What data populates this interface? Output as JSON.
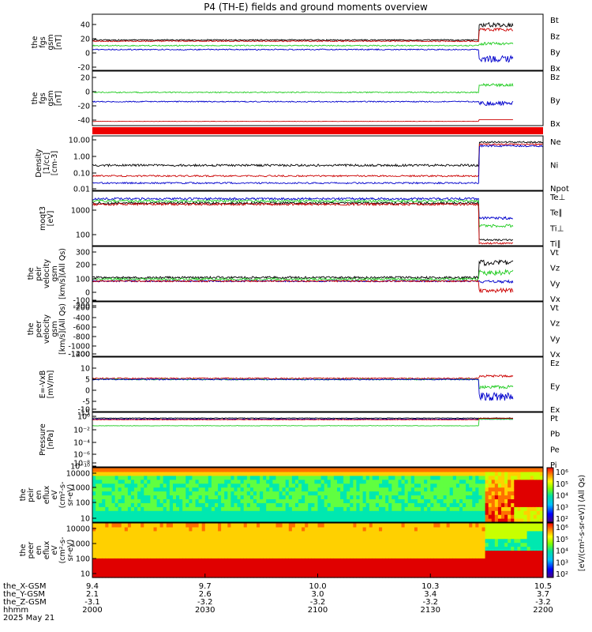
{
  "title": "P4 (TH-E) fields and ground moments overview",
  "panels": [
    {
      "id": "p1",
      "ylabel": [
        "the",
        "fgs",
        "gsm",
        "[nT]"
      ],
      "ticks": [
        "40",
        "20",
        "0",
        "-20"
      ],
      "legend": [
        {
          "name": "Bt",
          "color": "#000000"
        },
        {
          "name": "Bz",
          "color": "#cc0000"
        },
        {
          "name": "By",
          "color": "#22cc22"
        },
        {
          "name": "Bx",
          "color": "#0000cc"
        }
      ]
    },
    {
      "id": "p2",
      "ylabel": [
        "the",
        "fgs",
        "gsm",
        "[nT]"
      ],
      "ticks": [
        "20",
        "0",
        "-20",
        "-40"
      ],
      "legend": [
        {
          "name": "Bz",
          "color": "#cc0000"
        },
        {
          "name": "By",
          "color": "#22cc22"
        },
        {
          "name": "Bx",
          "color": "#0000cc"
        }
      ]
    },
    {
      "id": "p3",
      "ylabel": [
        "Density",
        "[1/cc]",
        "[cm-3]"
      ],
      "ticks": [
        "10.00",
        "1.00",
        "0.10",
        "0.01"
      ],
      "legend": [
        {
          "name": "Ne",
          "color": "#cc0000"
        },
        {
          "name": "Ni",
          "color": "#000000"
        },
        {
          "name": "Npot",
          "color": "#0000cc"
        }
      ]
    },
    {
      "id": "p4",
      "ylabel": [
        "moqt3",
        "[eV]"
      ],
      "ticks": [
        "1000",
        "100"
      ],
      "legend": [
        {
          "name": "Te⊥",
          "color": "#cc0000"
        },
        {
          "name": "Te∥",
          "color": "#000000"
        },
        {
          "name": "Ti⊥",
          "color": "#22cc22"
        },
        {
          "name": "Ti∥",
          "color": "#22cc22"
        }
      ]
    },
    {
      "id": "p5",
      "ylabel": [
        "the",
        "peir",
        "velocity",
        "gsm",
        "[km/s](All Qs)"
      ],
      "ticks": [
        "300",
        "200",
        "100",
        "0",
        "-100",
        "-200"
      ],
      "legend": [
        {
          "name": "Vt",
          "color": "#000000"
        },
        {
          "name": "Vz",
          "color": "#cc0000"
        },
        {
          "name": "Vy",
          "color": "#22cc22"
        },
        {
          "name": "Vx",
          "color": "#0000cc"
        }
      ]
    },
    {
      "id": "p6",
      "ylabel": [
        "the",
        "peer",
        "velocity",
        "gsm",
        "[km/s](All Qs)"
      ],
      "ticks": [
        "-200",
        "-400",
        "-600",
        "-800",
        "-1000",
        "-1200",
        "-1400"
      ],
      "legend": [
        {
          "name": "Vt",
          "color": "#000000"
        },
        {
          "name": "Vz",
          "color": "#cc0000"
        },
        {
          "name": "Vy",
          "color": "#22cc22"
        },
        {
          "name": "Vx",
          "color": "#0000cc"
        }
      ]
    },
    {
      "id": "p7",
      "ylabel": [
        "E=-VxB",
        "[mV/m]"
      ],
      "ticks": [
        "10",
        "5",
        "0",
        "-5",
        "-10",
        "-15"
      ],
      "legend": [
        {
          "name": "Ez",
          "color": "#cc0000"
        },
        {
          "name": "Ey",
          "color": "#22cc22"
        },
        {
          "name": "Ex",
          "color": "#0000cc"
        }
      ]
    },
    {
      "id": "p8",
      "ylabel": [
        "Pressure",
        "[nPa]"
      ],
      "ticks": [
        "10⁰",
        "10⁻²",
        "10⁻⁴",
        "10⁻⁶",
        "10⁻⁸",
        "10⁻¹⁰"
      ],
      "legend": [
        {
          "name": "Pt",
          "color": "#000000"
        },
        {
          "name": "Pb",
          "color": "#cc0000"
        },
        {
          "name": "Pe",
          "color": "#22cc22"
        },
        {
          "name": "Pi",
          "color": "#0000cc"
        }
      ]
    },
    {
      "id": "p9",
      "ylabel": [
        "the",
        "peir",
        "en",
        "eflux",
        "eV",
        "(cm²-s-",
        "sr-eV)"
      ],
      "ticks": [
        "10000",
        "1000",
        "100",
        "10"
      ],
      "legend": []
    },
    {
      "id": "p10",
      "ylabel": [
        "the",
        "peer",
        "en",
        "eflux",
        "eV",
        "(cm²-s-",
        "sr-eV)"
      ],
      "ticks": [
        "10000",
        "1000",
        "100",
        "10"
      ],
      "legend": []
    }
  ],
  "colorbar": {
    "ticks1": [
      "10⁶",
      "10⁵",
      "10⁴",
      "10³",
      "10²"
    ],
    "ticks2": [
      "10⁶",
      "10⁵",
      "10⁴",
      "10³",
      "10²"
    ],
    "label": "[eV/(cm²-s-sr-eV)] (All Qs)"
  },
  "footer": {
    "row_labels": [
      "the_X-GSM",
      "the_Y-GSM",
      "the_Z-GSM",
      "hhmm",
      "2025 May 21"
    ],
    "columns": [
      {
        "vals": [
          "9.4",
          "2.1",
          "-3.1",
          "2000"
        ]
      },
      {
        "vals": [
          "9.7",
          "2.6",
          "-3.2",
          "2030"
        ]
      },
      {
        "vals": [
          "10.0",
          "3.0",
          "-3.2",
          "2100"
        ]
      },
      {
        "vals": [
          "10.3",
          "3.4",
          "-3.2",
          "2130"
        ]
      },
      {
        "vals": [
          "10.5",
          "3.7",
          "-3.2",
          "2200"
        ]
      }
    ]
  },
  "chart_data": {
    "type": "line",
    "x_axis": {
      "label": "hhmm",
      "ticks": [
        "2000",
        "2030",
        "2100",
        "2130",
        "2200"
      ],
      "date": "2025 May 21"
    },
    "series_description": "Multi-panel time-series overview: magnetic field, density, temperature, velocity, electric field, pressure and energy spectrograms",
    "panels": [
      {
        "name": "fgs gsm",
        "ylim": [
          -25,
          55
        ],
        "series": [
          {
            "name": "Bt",
            "approx": [
              [
                2000,
                12
              ],
              [
                2045,
                12
              ],
              [
                2110,
                38
              ],
              [
                2130,
                42
              ],
              [
                2150,
                45
              ],
              [
                2155,
                10
              ]
            ]
          },
          {
            "name": "Bz",
            "approx": [
              [
                2000,
                10
              ],
              [
                2045,
                10
              ],
              [
                2110,
                35
              ],
              [
                2130,
                30
              ],
              [
                2150,
                30
              ],
              [
                2155,
                10
              ]
            ]
          },
          {
            "name": "By",
            "approx": [
              [
                2000,
                6
              ],
              [
                2045,
                6
              ],
              [
                2110,
                15
              ],
              [
                2130,
                15
              ],
              [
                2150,
                12
              ]
            ]
          },
          {
            "name": "Bx",
            "approx": [
              [
                2000,
                0
              ],
              [
                2045,
                0
              ],
              [
                2106,
                -15
              ],
              [
                2130,
                0
              ],
              [
                2150,
                -5
              ]
            ]
          }
        ]
      },
      {
        "name": "fgs gsm (2)",
        "ylim": [
          -50,
          35
        ],
        "series": [
          {
            "name": "Bz",
            "approx": [
              [
                2000,
                -45
              ],
              [
                2100,
                -45
              ],
              [
                2150,
                -42
              ]
            ]
          },
          {
            "name": "By",
            "approx": [
              [
                2000,
                17
              ],
              [
                2100,
                15
              ],
              [
                2120,
                25
              ],
              [
                2150,
                25
              ]
            ]
          },
          {
            "name": "Bx",
            "approx": [
              [
                2000,
                -2
              ],
              [
                2100,
                -5
              ],
              [
                2108,
                -25
              ],
              [
                2150,
                -5
              ]
            ]
          }
        ]
      },
      {
        "name": "Density",
        "scale": "log",
        "ylim": [
          0.01,
          20
        ],
        "series": [
          {
            "name": "Ne",
            "approx": [
              [
                2000,
                0.1
              ],
              [
                2100,
                0.1
              ],
              [
                2115,
                5
              ],
              [
                2150,
                5
              ],
              [
                2200,
                0.5
              ]
            ]
          },
          {
            "name": "Ni",
            "approx": [
              [
                2000,
                0.3
              ],
              [
                2100,
                0.3
              ],
              [
                2115,
                8
              ],
              [
                2150,
                8
              ],
              [
                2200,
                0.3
              ]
            ]
          },
          {
            "name": "Npot",
            "approx": [
              [
                2000,
                0.05
              ],
              [
                2100,
                0.05
              ],
              [
                2115,
                3
              ],
              [
                2150,
                3
              ],
              [
                2200,
                0.05
              ]
            ]
          }
        ]
      },
      {
        "name": "moqt3",
        "scale": "log",
        "ylim": [
          50,
          5000
        ],
        "series": [
          {
            "name": "Te⊥",
            "approx": [
              [
                2000,
                2000
              ],
              [
                2100,
                1500
              ],
              [
                2115,
                80
              ],
              [
                2150,
                80
              ]
            ]
          },
          {
            "name": "Te∥",
            "approx": [
              [
                2000,
                2200
              ],
              [
                2100,
                1800
              ],
              [
                2115,
                90
              ],
              [
                2150,
                90
              ]
            ]
          },
          {
            "name": "Ti⊥",
            "approx": [
              [
                2000,
                2500
              ],
              [
                2100,
                2000
              ],
              [
                2115,
                400
              ],
              [
                2150,
                400
              ]
            ]
          },
          {
            "name": "Ti∥",
            "approx": [
              [
                2000,
                2600
              ],
              [
                2100,
                2200
              ],
              [
                2115,
                700
              ],
              [
                2150,
                700
              ]
            ]
          }
        ]
      },
      {
        "name": "peir velocity gsm",
        "ylim": [
          -250,
          320
        ],
        "series": [
          {
            "name": "Vt",
            "approx": [
              [
                2000,
                50
              ],
              [
                2100,
                50
              ],
              [
                2130,
                200
              ],
              [
                2150,
                180
              ]
            ]
          },
          {
            "name": "Vz",
            "approx": [
              [
                2000,
                0
              ],
              [
                2100,
                0
              ],
              [
                2130,
                -50
              ],
              [
                2150,
                -20
              ]
            ]
          },
          {
            "name": "Vy",
            "approx": [
              [
                2000,
                30
              ],
              [
                2100,
                30
              ],
              [
                2130,
                150
              ],
              [
                2150,
                130
              ]
            ]
          },
          {
            "name": "Vx",
            "approx": [
              [
                2000,
                0
              ],
              [
                2100,
                0
              ],
              [
                2130,
                -10
              ],
              [
                2150,
                0
              ]
            ]
          }
        ]
      },
      {
        "name": "peer velocity gsm",
        "ylim": [
          -1500,
          0
        ],
        "series": []
      },
      {
        "name": "E=-VxB",
        "ylim": [
          -16,
          11
        ],
        "series": [
          {
            "name": "Ez",
            "approx": [
              [
                2000,
                0
              ],
              [
                2100,
                0
              ],
              [
                2130,
                2
              ],
              [
                2150,
                1
              ]
            ]
          },
          {
            "name": "Ey",
            "approx": [
              [
                2000,
                0
              ],
              [
                2100,
                0
              ],
              [
                2130,
                -4
              ],
              [
                2150,
                -3
              ]
            ]
          },
          {
            "name": "Ex",
            "approx": [
              [
                2000,
                0
              ],
              [
                2100,
                0
              ],
              [
                2130,
                -7
              ],
              [
                2150,
                -5
              ]
            ]
          }
        ]
      },
      {
        "name": "Pressure",
        "scale": "log",
        "ylim": [
          1e-11,
          1
        ],
        "series": [
          {
            "name": "Pt",
            "approx": [
              [
                2000,
                0.3
              ],
              [
                2150,
                0.4
              ]
            ]
          },
          {
            "name": "Pb",
            "approx": [
              [
                2000,
                0.1
              ],
              [
                2150,
                0.3
              ]
            ]
          },
          {
            "name": "Pe",
            "approx": [
              [
                2000,
                0.01
              ],
              [
                2150,
                0.05
              ]
            ]
          },
          {
            "name": "Pi",
            "approx": [
              [
                2000,
                0.2
              ],
              [
                2150,
                0.2
              ]
            ]
          }
        ]
      }
    ]
  }
}
